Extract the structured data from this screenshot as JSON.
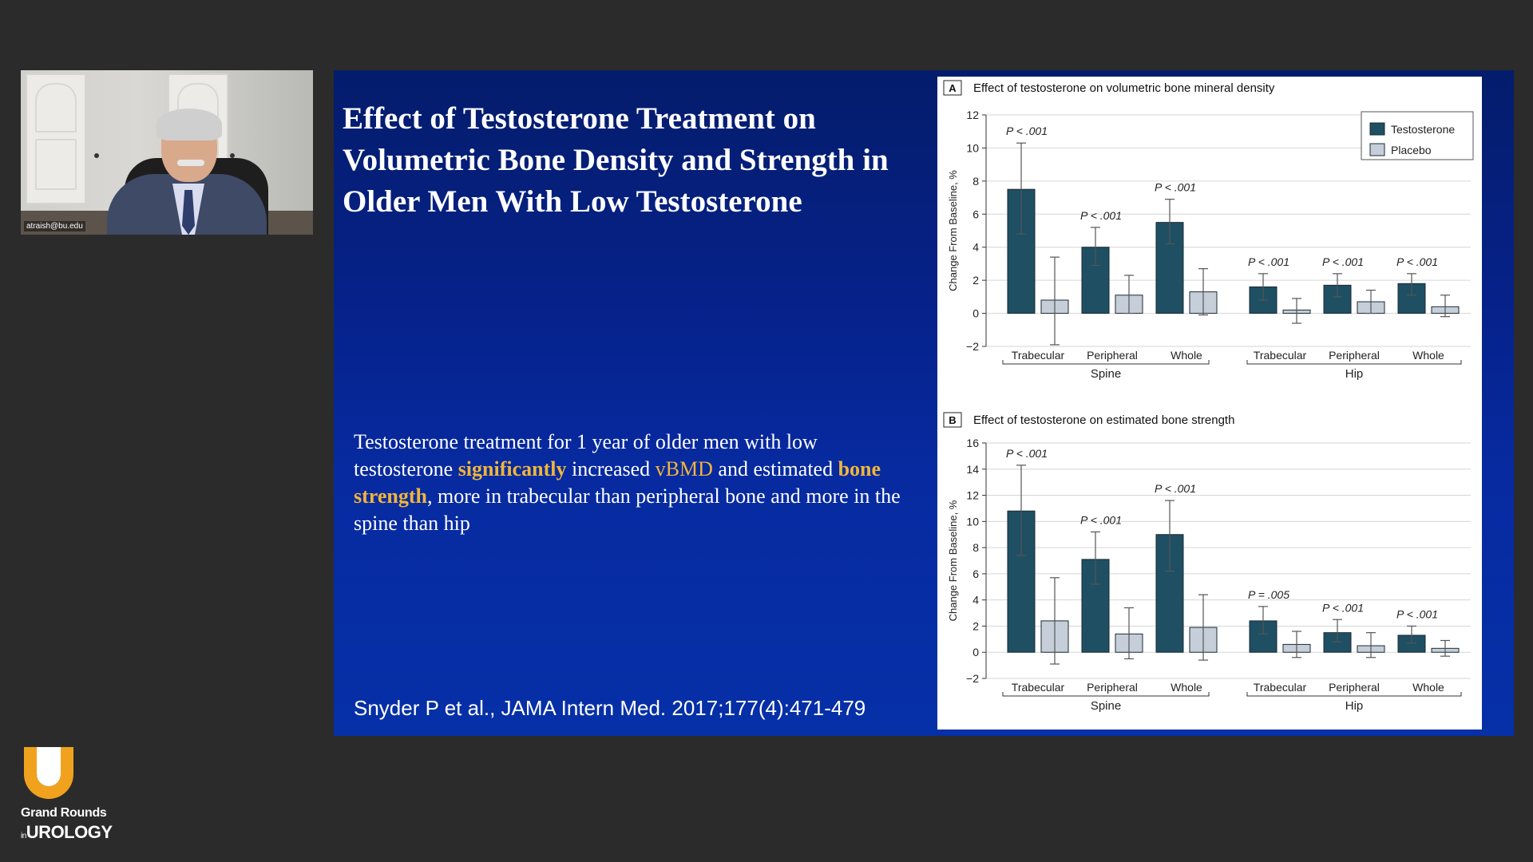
{
  "webcam": {
    "participant_label": "atraish@bu.edu"
  },
  "slide": {
    "title": "Effect of Testosterone Treatment on Volumetric Bone Density and Strength in Older Men With Low Testosterone",
    "body": {
      "part1": "Testosterone treatment for 1 year of older men with low testosterone ",
      "hl1": "significantly",
      "part2": " increased ",
      "hl2": "vBMD",
      "part3": " and estimated ",
      "hl3": "bone strength",
      "part4": ", more in trabecular than peripheral bone and more in the spine than hip"
    },
    "citation": "Snyder P et al., JAMA Intern Med. 2017;177(4):471-479",
    "colors": {
      "highlight": "#f0b53b",
      "background": "#0628a0"
    }
  },
  "chart_data": [
    {
      "type": "bar",
      "panel_letter": "A",
      "title": "Effect of testosterone on volumetric bone mineral density",
      "ylabel": "Change From Baseline, %",
      "ylim": [
        -2,
        12
      ],
      "yticks": [
        -2,
        0,
        2,
        4,
        6,
        8,
        10,
        12
      ],
      "yticks_text": [
        "−2",
        "0",
        "2",
        "4",
        "6",
        "8",
        "10",
        "12"
      ],
      "groups": [
        "Spine",
        "Hip"
      ],
      "categories": [
        "Trabecular",
        "Peripheral",
        "Whole",
        "Trabecular",
        "Peripheral",
        "Whole"
      ],
      "p_values": [
        "P < .001",
        "P < .001",
        "P < .001",
        "P < .001",
        "P < .001",
        "P < .001"
      ],
      "legend_position": "top-right",
      "series": [
        {
          "name": "Testosterone",
          "color": "#1f4f63",
          "values": [
            7.5,
            4.0,
            5.5,
            1.6,
            1.7,
            1.8
          ],
          "err_low": [
            4.8,
            2.9,
            4.2,
            0.8,
            1.0,
            1.1
          ],
          "err_high": [
            10.3,
            5.2,
            6.9,
            2.4,
            2.4,
            2.4
          ]
        },
        {
          "name": "Placebo",
          "color": "#c5ced9",
          "values": [
            0.8,
            1.1,
            1.3,
            0.2,
            0.7,
            0.4
          ],
          "err_low": [
            -1.9,
            0.0,
            -0.1,
            -0.6,
            0.0,
            -0.2
          ],
          "err_high": [
            3.4,
            2.3,
            2.7,
            0.9,
            1.4,
            1.1
          ]
        }
      ]
    },
    {
      "type": "bar",
      "panel_letter": "B",
      "title": "Effect of testosterone on estimated bone strength",
      "ylabel": "Change From Baseline, %",
      "ylim": [
        -2,
        16
      ],
      "yticks": [
        -2,
        0,
        2,
        4,
        6,
        8,
        10,
        12,
        14,
        16
      ],
      "yticks_text": [
        "−2",
        "0",
        "2",
        "4",
        "6",
        "8",
        "10",
        "12",
        "14",
        "16"
      ],
      "groups": [
        "Spine",
        "Hip"
      ],
      "categories": [
        "Trabecular",
        "Peripheral",
        "Whole",
        "Trabecular",
        "Peripheral",
        "Whole"
      ],
      "p_values": [
        "P < .001",
        "P < .001",
        "P < .001",
        "P = .005",
        "P < .001",
        "P < .001"
      ],
      "series": [
        {
          "name": "Testosterone",
          "color": "#1f4f63",
          "values": [
            10.8,
            7.1,
            9.0,
            2.4,
            1.5,
            1.3
          ],
          "err_low": [
            7.4,
            5.2,
            6.2,
            1.4,
            0.8,
            0.7
          ],
          "err_high": [
            14.3,
            9.2,
            11.6,
            3.5,
            2.5,
            2.0
          ]
        },
        {
          "name": "Placebo",
          "color": "#c5ced9",
          "values": [
            2.4,
            1.4,
            1.9,
            0.6,
            0.5,
            0.3
          ],
          "err_low": [
            -0.9,
            -0.5,
            -0.6,
            -0.4,
            -0.4,
            -0.3
          ],
          "err_high": [
            5.7,
            3.4,
            4.4,
            1.6,
            1.5,
            0.9
          ]
        }
      ]
    }
  ],
  "branding": {
    "line1": "Grand Rounds",
    "line2_prefix": "in",
    "line2": "UROLOGY",
    "accent": "#f0a21e"
  }
}
